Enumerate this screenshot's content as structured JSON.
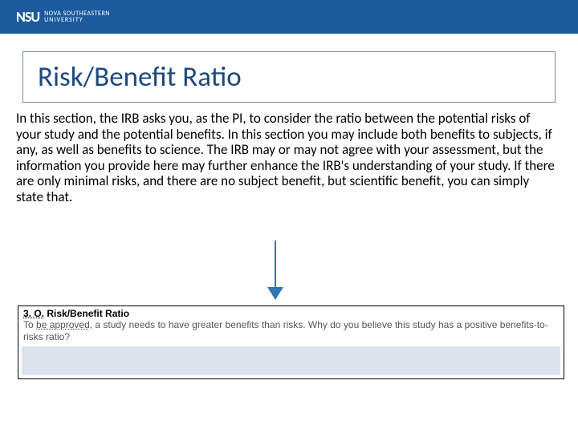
{
  "header": {
    "logo_mark": "NSU",
    "logo_line1": "NOVA SOUTHEASTERN",
    "logo_line2": "UNIVERSITY",
    "bar_color": "#1b5a9c"
  },
  "title": {
    "text": "Risk/Benefit Ratio",
    "color": "#1f497d",
    "border_color": "#6e8cb0"
  },
  "body": {
    "text": "In this section, the IRB asks you, as the PI, to consider the ratio between the potential risks of your study and the potential benefits.  In this section you may include both benefits to subjects, if any, as well as benefits to science.  The IRB may or may not agree with your assessment, but the information you provide here may further enhance the IRB's understanding of your study.   If there are only minimal risks, and there are no subject benefit, but scientific benefit, you can simply state that."
  },
  "arrow": {
    "color": "#2e75b6"
  },
  "form": {
    "section_number": "3. O.",
    "section_title": "Risk/Benefit Ratio",
    "desc_part1": "To ",
    "desc_part2_dotted": "be approved",
    "desc_part3": ", a study needs to have greater benefits than risks. Why do you believe this study has a positive benefits-to-risks ratio?",
    "input_bg": "#dbe3ec"
  }
}
